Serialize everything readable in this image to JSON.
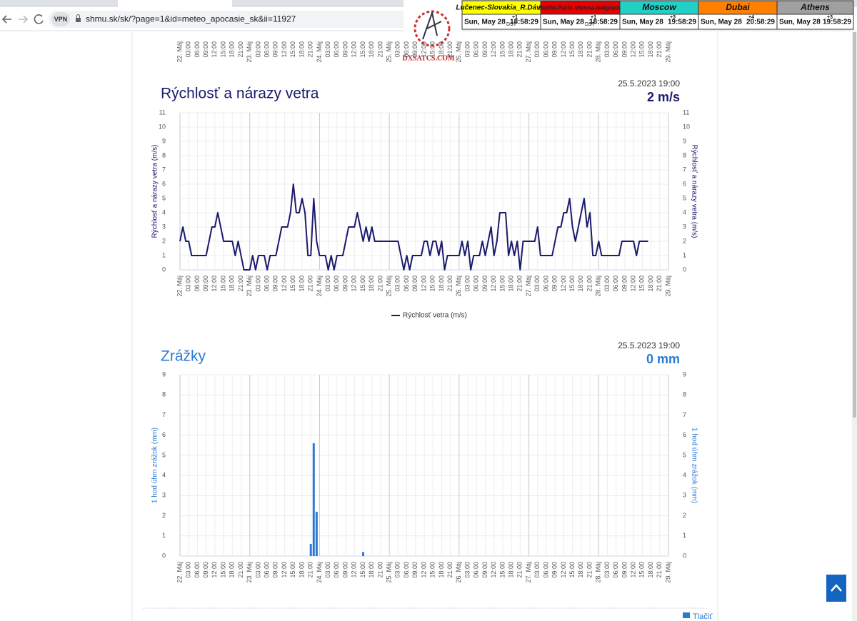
{
  "browser": {
    "vpn": "VPN",
    "url": "shmu.sk/sk/?page=1&id=meteo_apocasie_sk&ii=11927"
  },
  "clock_bar": {
    "logo": "DXSATCS.COM",
    "clocks": [
      {
        "city": "Lučenec-Slovakia_R.Dávid",
        "date": "Sun, May 28",
        "offset": "+1",
        "dst": "DST",
        "time": "18:58:29",
        "color": "#ffff00"
      },
      {
        "city": "Berlin-Paris-Vienna-Belgrade",
        "date": "Sun, May 28",
        "offset": "+1",
        "dst": "DST",
        "time": "18:58:29",
        "color": "#e60000"
      },
      {
        "city": "Moscow",
        "date": "Sun, May 28",
        "offset": "+3",
        "time": "19:58:29",
        "color": "#22d0c6"
      },
      {
        "city": "Dubai",
        "date": "Sun, May 28",
        "offset": "+4",
        "time": "20:58:29",
        "color": "#ff8000"
      },
      {
        "city": "Athens",
        "date": "Sun, May 28",
        "offset": "+3",
        "time": "19:58:29",
        "color": "#a0a0a0"
      }
    ]
  },
  "chart_data": [
    {
      "type": "line",
      "title": "Rýchlosť a nárazy vetra",
      "timestamp": "25.5.2023 19:00",
      "current": "2 m/s",
      "y_axis_label": "Rýchlosť a nárazy vetra (m/s)",
      "title_color": "#1a1a6e",
      "grid": true,
      "x": [
        0,
        1,
        2,
        3,
        4,
        5,
        6,
        7,
        8,
        9,
        10,
        11,
        12,
        13,
        14,
        15,
        16,
        17,
        18,
        19,
        20,
        21,
        22,
        23,
        24,
        25,
        26,
        27,
        28,
        29,
        30,
        31,
        32,
        33,
        34,
        35,
        36,
        37,
        38,
        39,
        40,
        41,
        42,
        43,
        44,
        45,
        46,
        47,
        48,
        49,
        50,
        51,
        52,
        53,
        54,
        55,
        56,
        57,
        58,
        59,
        60,
        61,
        62,
        63,
        64,
        65,
        66,
        67,
        68,
        69,
        70,
        71,
        72,
        73,
        74,
        75,
        76,
        77,
        78,
        79,
        80,
        81,
        82,
        83,
        84,
        85,
        86,
        87,
        88,
        89,
        90,
        91,
        92,
        93,
        94,
        95,
        96,
        97,
        98,
        99,
        100,
        101,
        102,
        103,
        104,
        105,
        106,
        107,
        108,
        109,
        110,
        111,
        112,
        113,
        114,
        115,
        116,
        117,
        118,
        119,
        120,
        121,
        122,
        123,
        124,
        125,
        126,
        127,
        128,
        129,
        130,
        131,
        132,
        133,
        134,
        135,
        136,
        137,
        138,
        139,
        140,
        141,
        142,
        143,
        144,
        145,
        146,
        147,
        148,
        149,
        150,
        151,
        152,
        153,
        154,
        155,
        156,
        157,
        158,
        159,
        160,
        161
      ],
      "series": [
        {
          "name": "Rýchlosť vetra (m/s)",
          "color": "#1a1a6e",
          "values": [
            2,
            3,
            2,
            2,
            1,
            1,
            1,
            1,
            1,
            1,
            2,
            3,
            3,
            4,
            3,
            2,
            2,
            2,
            2,
            1,
            2,
            1,
            0,
            0,
            0,
            1,
            0,
            1,
            1,
            1,
            0,
            1,
            1,
            1,
            2,
            3,
            3,
            3,
            4,
            6,
            4,
            4,
            5,
            4,
            1,
            1,
            5,
            2,
            1,
            1,
            1,
            0,
            1,
            0,
            1,
            1,
            1,
            2,
            3,
            3,
            3,
            4,
            3,
            2,
            3,
            2,
            3,
            2,
            2,
            2,
            2,
            2,
            2,
            2,
            2,
            2,
            1,
            0,
            1,
            0,
            1,
            1,
            1,
            1,
            2,
            2,
            1,
            2,
            2,
            1,
            2,
            0,
            1,
            1,
            1,
            1,
            1,
            2,
            1,
            2,
            0,
            1,
            1,
            1,
            2,
            1,
            2,
            3,
            1,
            2,
            4,
            4,
            4,
            1,
            2,
            1,
            2,
            0,
            2,
            2,
            2,
            2,
            2,
            3,
            1,
            1,
            1,
            1,
            1,
            2,
            3,
            3,
            4,
            4,
            5,
            3,
            2,
            3,
            4,
            5,
            3,
            4,
            1,
            1,
            2,
            1,
            1,
            1,
            1,
            1,
            1,
            1,
            2,
            2,
            2,
            2,
            2,
            1,
            2,
            2,
            2,
            2
          ]
        }
      ],
      "xlim": [
        0,
        168
      ],
      "xticks": [
        {
          "value": 0,
          "label": "22. Máj"
        },
        {
          "value": 3,
          "label": "03:00"
        },
        {
          "value": 6,
          "label": "06:00"
        },
        {
          "value": 9,
          "label": "09:00"
        },
        {
          "value": 12,
          "label": "12:00"
        },
        {
          "value": 15,
          "label": "15:00"
        },
        {
          "value": 18,
          "label": "18:00"
        },
        {
          "value": 21,
          "label": "21:00"
        },
        {
          "value": 24,
          "label": "23. Máj"
        },
        {
          "value": 27,
          "label": "03:00"
        },
        {
          "value": 30,
          "label": "06:00"
        },
        {
          "value": 33,
          "label": "09:00"
        },
        {
          "value": 36,
          "label": "12:00"
        },
        {
          "value": 39,
          "label": "15:00"
        },
        {
          "value": 42,
          "label": "18:00"
        },
        {
          "value": 45,
          "label": "21:00"
        },
        {
          "value": 48,
          "label": "24. Máj"
        },
        {
          "value": 51,
          "label": "03:00"
        },
        {
          "value": 54,
          "label": "06:00"
        },
        {
          "value": 57,
          "label": "09:00"
        },
        {
          "value": 60,
          "label": "12:00"
        },
        {
          "value": 63,
          "label": "15:00"
        },
        {
          "value": 66,
          "label": "18:00"
        },
        {
          "value": 69,
          "label": "21:00"
        },
        {
          "value": 72,
          "label": "25. Máj"
        },
        {
          "value": 75,
          "label": "03:00"
        },
        {
          "value": 78,
          "label": "06:00"
        },
        {
          "value": 81,
          "label": "09:00"
        },
        {
          "value": 84,
          "label": "12:00"
        },
        {
          "value": 87,
          "label": "15:00"
        },
        {
          "value": 90,
          "label": "18:00"
        },
        {
          "value": 93,
          "label": "21:00"
        },
        {
          "value": 96,
          "label": "26. Máj"
        },
        {
          "value": 99,
          "label": "03:00"
        },
        {
          "value": 102,
          "label": "06:00"
        },
        {
          "value": 105,
          "label": "09:00"
        },
        {
          "value": 108,
          "label": "12:00"
        },
        {
          "value": 111,
          "label": "15:00"
        },
        {
          "value": 114,
          "label": "18:00"
        },
        {
          "value": 117,
          "label": "21:00"
        },
        {
          "value": 120,
          "label": "27. Máj"
        },
        {
          "value": 123,
          "label": "03:00"
        },
        {
          "value": 126,
          "label": "06:00"
        },
        {
          "value": 129,
          "label": "09:00"
        },
        {
          "value": 132,
          "label": "12:00"
        },
        {
          "value": 135,
          "label": "15:00"
        },
        {
          "value": 138,
          "label": "18:00"
        },
        {
          "value": 141,
          "label": "21:00"
        },
        {
          "value": 144,
          "label": "28. Máj"
        },
        {
          "value": 147,
          "label": "03:00"
        },
        {
          "value": 150,
          "label": "06:00"
        },
        {
          "value": 153,
          "label": "09:00"
        },
        {
          "value": 156,
          "label": "12:00"
        },
        {
          "value": 159,
          "label": "15:00"
        },
        {
          "value": 162,
          "label": "18:00"
        },
        {
          "value": 165,
          "label": "21:00"
        },
        {
          "value": 168,
          "label": "29. Máj"
        }
      ],
      "ylim": [
        0,
        11
      ],
      "yticks": [
        0,
        1,
        2,
        3,
        4,
        5,
        6,
        7,
        8,
        9,
        10,
        11
      ]
    },
    {
      "type": "bar",
      "title": "Zrážky",
      "timestamp": "25.5.2023 19:00",
      "current": "0 mm",
      "y_axis_label": "1 hod úhrn zrážok (mm)",
      "title_color": "#2a7ad5",
      "grid": true,
      "x": [
        45,
        46,
        47,
        63
      ],
      "series": [
        {
          "color": "#2a7ad5",
          "values": [
            0.6,
            5.6,
            2.2,
            0.2
          ]
        }
      ],
      "xlim": [
        0,
        168
      ],
      "xticks": [
        {
          "value": 0,
          "label": "22. Máj"
        },
        {
          "value": 3,
          "label": "03:00"
        },
        {
          "value": 6,
          "label": "06:00"
        },
        {
          "value": 9,
          "label": "09:00"
        },
        {
          "value": 12,
          "label": "12:00"
        },
        {
          "value": 15,
          "label": "15:00"
        },
        {
          "value": 18,
          "label": "18:00"
        },
        {
          "value": 21,
          "label": "21:00"
        },
        {
          "value": 24,
          "label": "23. Máj"
        },
        {
          "value": 27,
          "label": "03:00"
        },
        {
          "value": 30,
          "label": "06:00"
        },
        {
          "value": 33,
          "label": "09:00"
        },
        {
          "value": 36,
          "label": "12:00"
        },
        {
          "value": 39,
          "label": "15:00"
        },
        {
          "value": 42,
          "label": "18:00"
        },
        {
          "value": 45,
          "label": "21:00"
        },
        {
          "value": 48,
          "label": "24. Máj"
        },
        {
          "value": 51,
          "label": "03:00"
        },
        {
          "value": 54,
          "label": "06:00"
        },
        {
          "value": 57,
          "label": "09:00"
        },
        {
          "value": 60,
          "label": "12:00"
        },
        {
          "value": 63,
          "label": "15:00"
        },
        {
          "value": 66,
          "label": "18:00"
        },
        {
          "value": 69,
          "label": "21:00"
        },
        {
          "value": 72,
          "label": "25. Máj"
        },
        {
          "value": 75,
          "label": "03:00"
        },
        {
          "value": 78,
          "label": "06:00"
        },
        {
          "value": 81,
          "label": "09:00"
        },
        {
          "value": 84,
          "label": "12:00"
        },
        {
          "value": 87,
          "label": "15:00"
        },
        {
          "value": 90,
          "label": "18:00"
        },
        {
          "value": 93,
          "label": "21:00"
        },
        {
          "value": 96,
          "label": "26. Máj"
        },
        {
          "value": 99,
          "label": "03:00"
        },
        {
          "value": 102,
          "label": "06:00"
        },
        {
          "value": 105,
          "label": "09:00"
        },
        {
          "value": 108,
          "label": "12:00"
        },
        {
          "value": 111,
          "label": "15:00"
        },
        {
          "value": 114,
          "label": "18:00"
        },
        {
          "value": 117,
          "label": "21:00"
        },
        {
          "value": 120,
          "label": "27. Máj"
        },
        {
          "value": 123,
          "label": "03:00"
        },
        {
          "value": 126,
          "label": "06:00"
        },
        {
          "value": 129,
          "label": "09:00"
        },
        {
          "value": 132,
          "label": "12:00"
        },
        {
          "value": 135,
          "label": "15:00"
        },
        {
          "value": 138,
          "label": "18:00"
        },
        {
          "value": 141,
          "label": "21:00"
        },
        {
          "value": 144,
          "label": "28. Máj"
        },
        {
          "value": 147,
          "label": "03:00"
        },
        {
          "value": 150,
          "label": "06:00"
        },
        {
          "value": 153,
          "label": "09:00"
        },
        {
          "value": 156,
          "label": "12:00"
        },
        {
          "value": 159,
          "label": "15:00"
        },
        {
          "value": 162,
          "label": "18:00"
        },
        {
          "value": 165,
          "label": "21:00"
        },
        {
          "value": 168,
          "label": "29. Máj"
        }
      ],
      "ylim": [
        0,
        9
      ],
      "yticks": [
        0,
        1,
        2,
        3,
        4,
        5,
        6,
        7,
        8,
        9
      ]
    }
  ],
  "footer": {
    "print": "Tlačiť"
  }
}
